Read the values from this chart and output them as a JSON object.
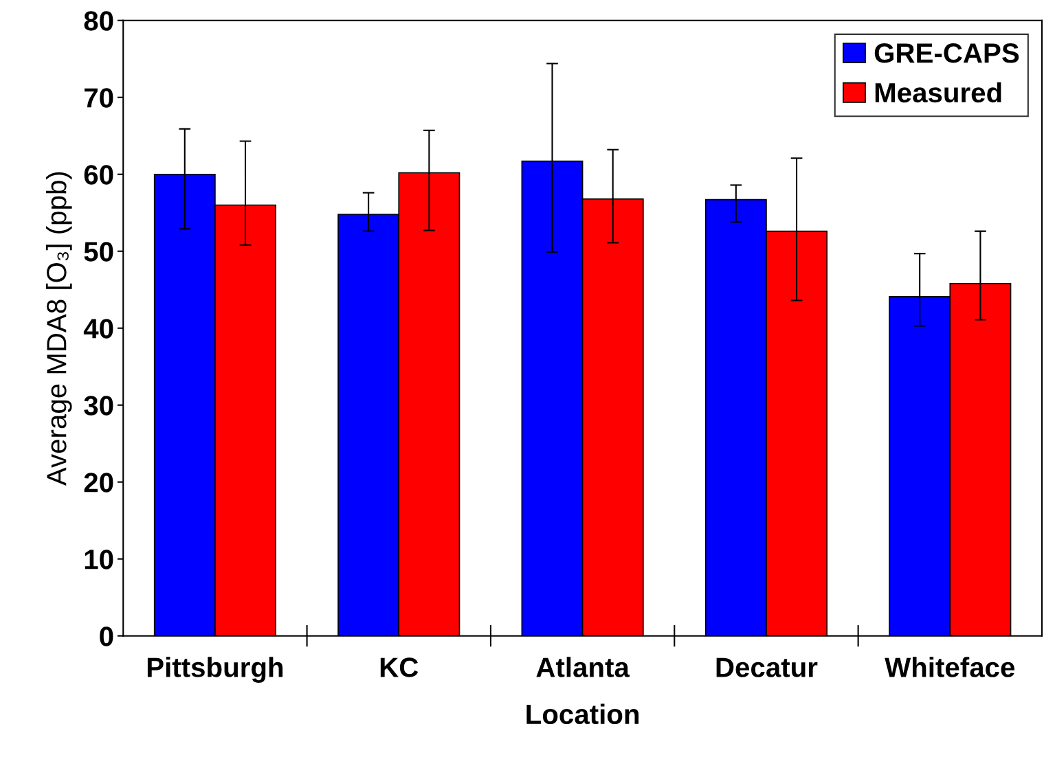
{
  "chart_data": {
    "type": "bar",
    "xlabel": "Location",
    "ylabel": "Average MDA8 [O₃] (ppb)",
    "categories": [
      "Pittsburgh",
      "KC",
      "Atlanta",
      "Decatur",
      "Whiteface"
    ],
    "series": [
      {
        "name": "GRE-CAPS",
        "color": "#0000ff",
        "values": [
          60.0,
          54.8,
          61.7,
          56.7,
          44.1
        ],
        "errors": [
          [
            52.9,
            65.9
          ],
          [
            52.6,
            57.6
          ],
          [
            49.9,
            74.4
          ],
          [
            53.8,
            58.6
          ],
          [
            40.3,
            49.7
          ]
        ]
      },
      {
        "name": "Measured",
        "color": "#ff0000",
        "values": [
          56.0,
          60.2,
          56.8,
          52.6,
          45.8
        ],
        "errors": [
          [
            50.8,
            64.3
          ],
          [
            52.7,
            65.7
          ],
          [
            51.1,
            63.2
          ],
          [
            43.6,
            62.1
          ],
          [
            41.1,
            52.6
          ]
        ]
      }
    ],
    "ylim": [
      0,
      80
    ],
    "yticks": [
      0,
      10,
      20,
      30,
      40,
      50,
      60,
      70,
      80
    ],
    "grid": false,
    "legend": "top right"
  }
}
